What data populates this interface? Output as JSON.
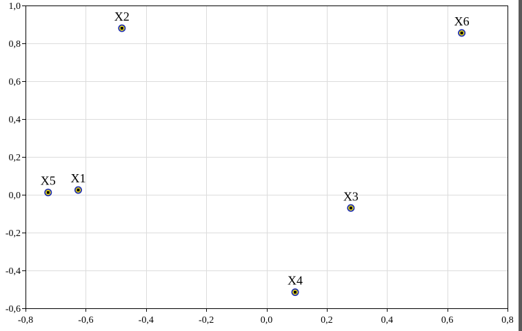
{
  "chart_data": {
    "type": "scatter",
    "title": "",
    "xlabel": "",
    "ylabel": "",
    "xlim": [
      -0.8,
      0.8
    ],
    "ylim": [
      -0.6,
      1.0
    ],
    "grid": true,
    "x_ticks": [
      -0.8,
      -0.6,
      -0.4,
      -0.2,
      0.0,
      0.2,
      0.4,
      0.6,
      0.8
    ],
    "x_tick_labels": [
      "-0,8",
      "-0,6",
      "-0,4",
      "-0,2",
      "0,0",
      "0,2",
      "0,4",
      "0,6",
      "0,8"
    ],
    "y_ticks": [
      1.0,
      0.8,
      0.6,
      0.4,
      0.2,
      0.0,
      -0.2,
      -0.4,
      -0.6
    ],
    "y_tick_labels": [
      "1,0",
      "0,8",
      "0,6",
      "0,4",
      "0,2",
      "0,0",
      "-0,2",
      "-0,4",
      "-0,6"
    ],
    "points": [
      {
        "label": "X1",
        "x": -0.625,
        "y": 0.025
      },
      {
        "label": "X2",
        "x": -0.48,
        "y": 0.88
      },
      {
        "label": "X3",
        "x": 0.28,
        "y": -0.07
      },
      {
        "label": "X4",
        "x": 0.095,
        "y": -0.515
      },
      {
        "label": "X5",
        "x": -0.725,
        "y": 0.012
      },
      {
        "label": "X6",
        "x": 0.648,
        "y": 0.855
      }
    ],
    "colors": {
      "marker_outer": "#1f2fb0",
      "marker_fill": "#f2e21e",
      "marker_center": "#000000",
      "grid": "#dcdcdc",
      "axes": "#000000"
    }
  }
}
